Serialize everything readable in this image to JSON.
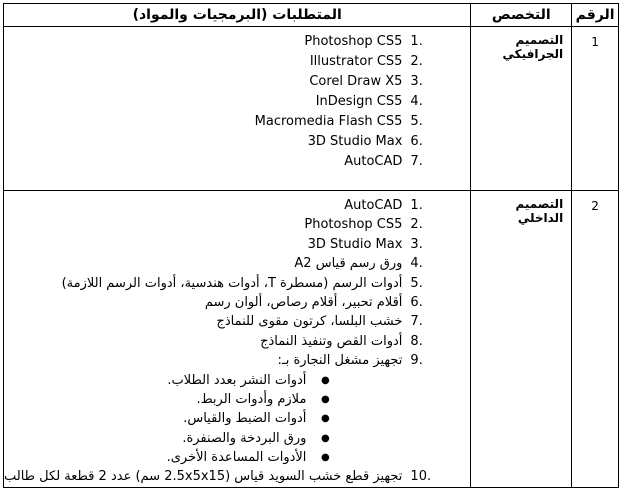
{
  "headers": {
    "number": "الرقم",
    "specialization": "التخصص",
    "requirements": "المتطلبات (البرمجيات والمواد)"
  },
  "rows": [
    {
      "number": "1",
      "specialization": "التصميم الجرافيكي",
      "items": [
        {
          "n": "1.",
          "text": "Photoshop CS5"
        },
        {
          "n": "2.",
          "text": "Illustrator CS5"
        },
        {
          "n": "3.",
          "text": "Corel Draw X5"
        },
        {
          "n": "4.",
          "text": "InDesign CS5"
        },
        {
          "n": "5.",
          "text": "Macromedia Flash CS5"
        },
        {
          "n": "6.",
          "text": "3D Studio Max"
        },
        {
          "n": "7.",
          "text": "AutoCAD"
        }
      ]
    },
    {
      "number": "2",
      "specialization": "التصميم الداخلي",
      "items": [
        {
          "n": "1.",
          "text": "AutoCAD"
        },
        {
          "n": "2.",
          "text": "Photoshop CS5"
        },
        {
          "n": "3.",
          "text": "3D Studio Max"
        },
        {
          "n": "4.",
          "text": "ورق رسم قياس A2"
        },
        {
          "n": "5.",
          "text": "أدوات الرسم (مسطرة T، أدوات هندسية، أدوات الرسم اللازمة)"
        },
        {
          "n": "6.",
          "text": "أقلام تحبير، أقلام رصاص، ألوان رسم"
        },
        {
          "n": "7.",
          "text": "خشب البلسا، كرتون مقوى للنماذج"
        },
        {
          "n": "8.",
          "text": "أدوات القص وتنفيذ النماذج"
        },
        {
          "n": "9.",
          "text": "تجهيز مشغل النجارة بـ:"
        }
      ],
      "bullets": [
        "أدوات النشر بعدد الطلاب.",
        "ملازم وأدوات الربط.",
        "أدوات الضبط والقياس.",
        "ورق البردخة والصنفرة.",
        "الأدوات المساعدة الأخرى."
      ],
      "last_item": {
        "n": "10.",
        "text": "تجهيز قطع خشب السويد قياس (2.5x5x15 سم) عدد 2 قطعة لكل طالب"
      }
    }
  ]
}
